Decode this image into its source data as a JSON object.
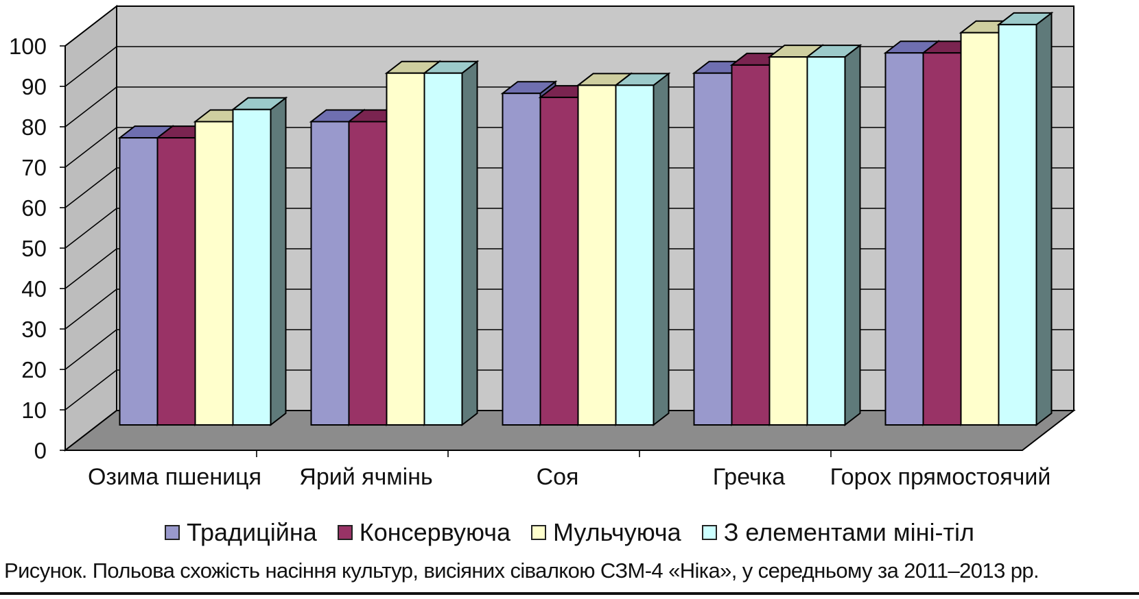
{
  "chart_data": {
    "type": "bar",
    "style": "3d-clustered",
    "categories": [
      "Озима пшениця",
      "Ярий ячмінь",
      "Соя",
      "Гречка",
      "Горох прямостоячий"
    ],
    "series": [
      {
        "name": "Традиційна",
        "values": [
          71,
          75,
          82,
          87,
          92
        ],
        "color": "#9999CC",
        "top": "#6F6FB0",
        "side": "#5C5C94"
      },
      {
        "name": "Консервуюча",
        "values": [
          71,
          75,
          81,
          89,
          92
        ],
        "color": "#993366",
        "top": "#7A2450",
        "side": "#5E1C3E"
      },
      {
        "name": "Мульчуюча",
        "values": [
          75,
          87,
          84,
          91,
          97
        ],
        "color": "#FFFFCC",
        "top": "#CFCFA0",
        "side": "#A8A884"
      },
      {
        "name": "З елементами міні-тіл",
        "values": [
          78,
          87,
          84,
          91,
          99
        ],
        "color": "#CCFFFF",
        "top": "#9CCACA",
        "side": "#5F7A7A"
      }
    ],
    "yticks": [
      "0",
      "10",
      "20",
      "30",
      "40",
      "50",
      "60",
      "70",
      "80",
      "90",
      "100"
    ],
    "ylim": [
      0,
      100
    ],
    "title": "",
    "xlabel": "",
    "ylabel": "",
    "legend_position": "bottom",
    "grid": true
  },
  "caption": "Рисунок. Польова схожість насіння культур, висіяних сівалкою СЗМ-4 «Ніка», у середньому за 2011–2013 рр."
}
